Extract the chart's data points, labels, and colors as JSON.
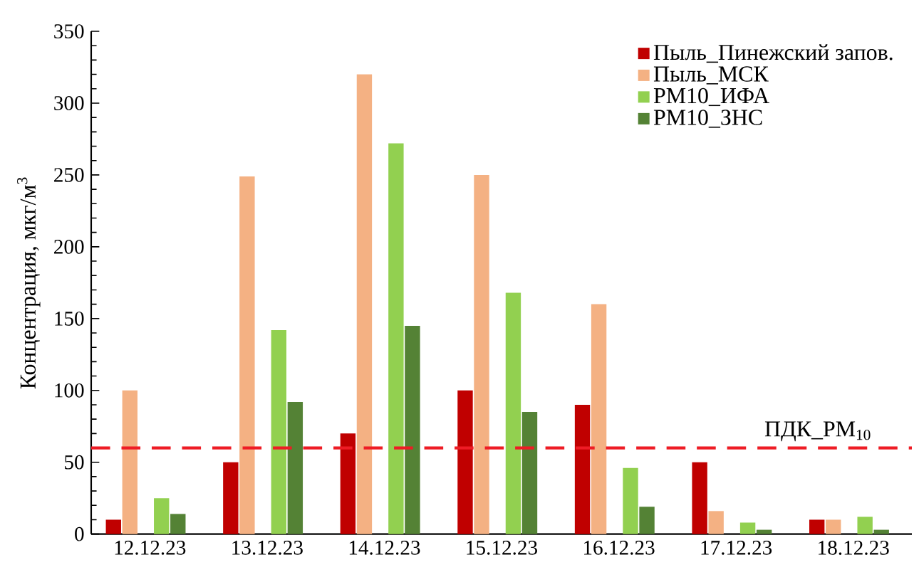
{
  "chart_data": {
    "type": "bar",
    "ylabel": "Концентрация, мкг/м$^{3}$",
    "categories": [
      "12.12.23",
      "13.12.23",
      "14.12.23",
      "15.12.23",
      "16.12.23",
      "17.12.23",
      "18.12.23"
    ],
    "series": [
      {
        "name": "Пыль_Пинежский запов.",
        "color": "#c00000",
        "values": [
          10,
          50,
          70,
          100,
          90,
          50,
          10
        ]
      },
      {
        "name": "Пыль_МСК",
        "color": "#f4b183",
        "values": [
          100,
          249,
          320,
          250,
          160,
          16,
          10
        ]
      },
      {
        "name": "PM10_ИФА",
        "color": "#92d050",
        "values": [
          25,
          142,
          272,
          168,
          46,
          8,
          12
        ]
      },
      {
        "name": "PM10_ЗНС",
        "color": "#548235",
        "values": [
          14,
          92,
          145,
          85,
          19,
          3,
          3
        ]
      }
    ],
    "ylim": [
      0,
      350
    ],
    "yticks": [
      0,
      50,
      100,
      150,
      200,
      250,
      300,
      350
    ],
    "ref_lines": [
      {
        "axis": "y",
        "value": 60,
        "label": "ПДК_PM$_{10}$",
        "color": "#ee1c25",
        "line_style": "dashed"
      }
    ],
    "legend": "top right",
    "grid": false
  }
}
